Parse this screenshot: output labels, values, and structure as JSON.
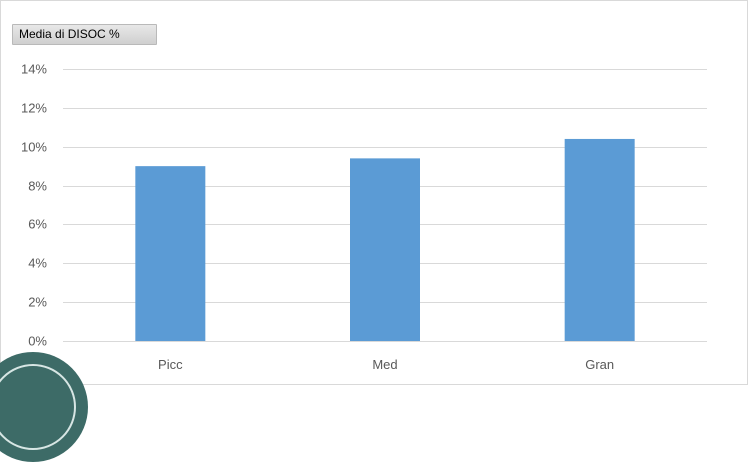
{
  "field_button": {
    "label": "Media di DISOC %"
  },
  "colors": {
    "bar": "#5b9bd5",
    "grid": "#d9d9d9",
    "tick_text": "#595959",
    "badge": "#3d6b67"
  },
  "chart_data": {
    "type": "bar",
    "title": "",
    "xlabel": "",
    "ylabel": "",
    "categories": [
      "Picc",
      "Med",
      "Gran"
    ],
    "values": [
      9.0,
      9.4,
      10.4
    ],
    "ylim": [
      0,
      14
    ],
    "yticks": [
      0,
      2,
      4,
      6,
      8,
      10,
      12,
      14
    ],
    "ytick_labels": [
      "0%",
      "2%",
      "4%",
      "6%",
      "8%",
      "10%",
      "12%",
      "14%"
    ],
    "grid": true,
    "legend": "none"
  }
}
